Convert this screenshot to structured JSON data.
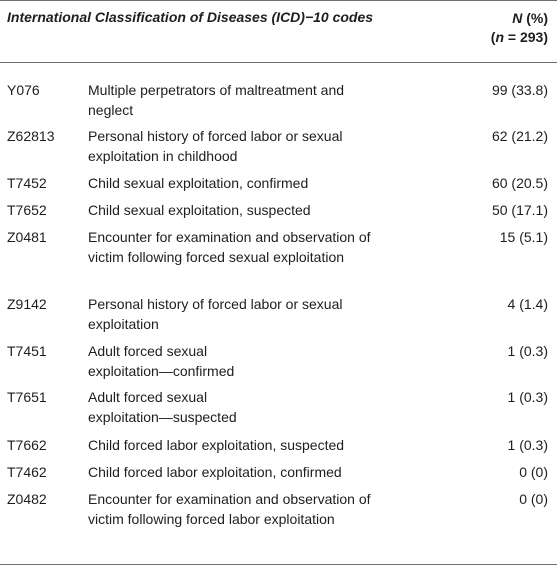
{
  "header": {
    "description": "International Classification of Diseases (ICD)−10 codes",
    "n_label": "N",
    "n_pct": " (%)",
    "n_count_open": "(",
    "n_count_var": "n",
    "n_count_rest": " = 293)"
  },
  "rows": [
    {
      "code": "Y076",
      "description": "Multiple perpetrators of maltreatment and neglect",
      "value": "99 (33.8)"
    },
    {
      "code": "Z62813",
      "description": "Personal history of forced labor or sexual exploitation in childhood",
      "value": "62 (21.2)"
    },
    {
      "code": "T7452",
      "description": "Child sexual exploitation, confirmed",
      "value": "60 (20.5)"
    },
    {
      "code": "T7652",
      "description": "Child sexual exploitation, suspected",
      "value": "50 (17.1)"
    },
    {
      "code": "Z0481",
      "description": "Encounter for examination and observation of victim following forced sexual exploitation",
      "value": "15 (5.1)"
    },
    {
      "code": "Z9142",
      "description": "Personal history of forced labor or sexual exploitation",
      "value": "4 (1.4)"
    },
    {
      "code": "T7451",
      "description": "Adult forced sexual exploitation—confirmed",
      "value": "1 (0.3)"
    },
    {
      "code": "T7651",
      "description": "Adult forced sexual exploitation—suspected",
      "value": "1 (0.3)"
    },
    {
      "code": "T7662",
      "description": "Child forced labor exploitation, suspected",
      "value": "1 (0.3)"
    },
    {
      "code": "T7462",
      "description": "Child forced labor exploitation, confirmed",
      "value": "0 (0)"
    },
    {
      "code": "Z0482",
      "description": "Encounter for examination and observation of victim following forced labor exploitation",
      "value": "0 (0)"
    }
  ]
}
